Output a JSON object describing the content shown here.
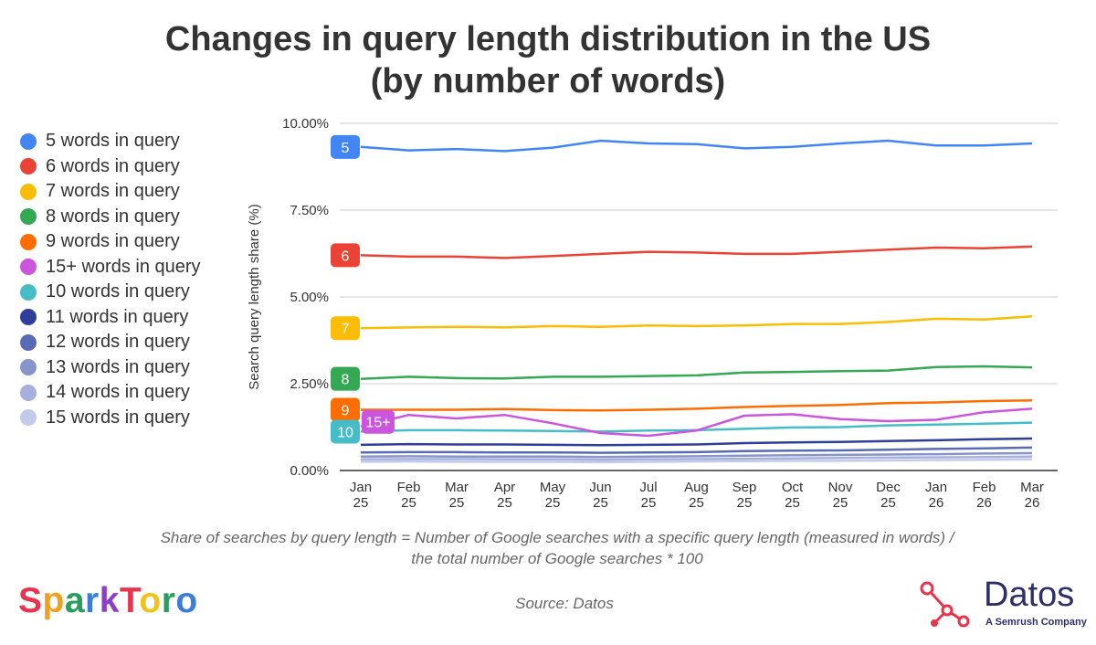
{
  "title_line1": "Changes in query length distribution in the US",
  "title_line2": "(by number of words)",
  "legend": [
    {
      "label": "5 words in query",
      "color": "#4285f4"
    },
    {
      "label": "6 words in query",
      "color": "#ea4335"
    },
    {
      "label": "7 words in query",
      "color": "#fbbc04"
    },
    {
      "label": "8 words in query",
      "color": "#34a853"
    },
    {
      "label": "9 words in query",
      "color": "#ff6d01"
    },
    {
      "label": "15+ words in query",
      "color": "#cc55dd"
    },
    {
      "label": "10 words in query",
      "color": "#46bdc6"
    },
    {
      "label": "11 words in query",
      "color": "#2f3e99"
    },
    {
      "label": "12 words in query",
      "color": "#5a6bb5"
    },
    {
      "label": "13 words in query",
      "color": "#8795cb"
    },
    {
      "label": "14 words in query",
      "color": "#a6b0dc"
    },
    {
      "label": "15 words in query",
      "color": "#c4cbea"
    }
  ],
  "footnote_line1": "Share of searches by query length = Number of Google searches with a specific query length (measured in words) /",
  "footnote_line2": "the total number of Google searches * 100",
  "source": "Source: Datos",
  "logos": {
    "sparktoro": "SparkToro",
    "datos": "Datos",
    "datos_tagline": "A Semrush Company"
  },
  "chart_data": {
    "type": "line",
    "ylabel": "Search query length share (%)",
    "xlabel": "",
    "ylim": [
      0,
      10
    ],
    "y_ticks": [
      "0.00%",
      "2.50%",
      "5.00%",
      "7.50%",
      "10.00%"
    ],
    "y_tick_values": [
      0,
      2.5,
      5,
      7.5,
      10
    ],
    "categories": [
      "Jan 25",
      "Feb 25",
      "Mar 25",
      "Apr 25",
      "May 25",
      "Jun 25",
      "Jul 25",
      "Aug 25",
      "Sep 25",
      "Oct 25",
      "Nov 25",
      "Dec 25",
      "Jan 26",
      "Feb 26",
      "Mar 26"
    ],
    "grid": true,
    "legend_position": "left",
    "series": [
      {
        "name": "5 words in query",
        "badge": "5",
        "color": "#4285f4",
        "values": [
          9.32,
          9.22,
          9.26,
          9.2,
          9.3,
          9.5,
          9.42,
          9.4,
          9.28,
          9.32,
          9.42,
          9.5,
          9.36,
          9.36,
          9.42
        ]
      },
      {
        "name": "6 words in query",
        "badge": "6",
        "color": "#ea4335",
        "values": [
          6.2,
          6.16,
          6.16,
          6.12,
          6.18,
          6.24,
          6.3,
          6.28,
          6.24,
          6.24,
          6.3,
          6.36,
          6.42,
          6.4,
          6.45
        ]
      },
      {
        "name": "7 words in query",
        "badge": "7",
        "color": "#fbbc04",
        "values": [
          4.1,
          4.12,
          4.14,
          4.12,
          4.16,
          4.14,
          4.18,
          4.16,
          4.18,
          4.22,
          4.22,
          4.28,
          4.37,
          4.35,
          4.44
        ]
      },
      {
        "name": "8 words in query",
        "badge": "8",
        "color": "#34a853",
        "values": [
          2.64,
          2.7,
          2.66,
          2.65,
          2.7,
          2.7,
          2.72,
          2.74,
          2.82,
          2.84,
          2.86,
          2.88,
          2.98,
          3.0,
          2.97
        ]
      },
      {
        "name": "9 words in query",
        "badge": "9",
        "color": "#ff6d01",
        "values": [
          1.75,
          1.75,
          1.75,
          1.77,
          1.74,
          1.73,
          1.75,
          1.78,
          1.83,
          1.86,
          1.89,
          1.94,
          1.96,
          2.0,
          2.02
        ]
      },
      {
        "name": "15+ words in query",
        "badge": "15+",
        "color": "#cc55dd",
        "values": [
          1.27,
          1.6,
          1.5,
          1.6,
          1.36,
          1.08,
          1.0,
          1.15,
          1.58,
          1.62,
          1.48,
          1.42,
          1.46,
          1.68,
          1.78
        ]
      },
      {
        "name": "10 words in query",
        "badge": "10",
        "color": "#46bdc6",
        "values": [
          1.12,
          1.16,
          1.16,
          1.15,
          1.14,
          1.12,
          1.15,
          1.16,
          1.2,
          1.24,
          1.25,
          1.3,
          1.32,
          1.35,
          1.38
        ]
      },
      {
        "name": "11 words in query",
        "badge": "",
        "color": "#2f3e99",
        "values": [
          0.74,
          0.76,
          0.75,
          0.75,
          0.74,
          0.73,
          0.74,
          0.75,
          0.79,
          0.81,
          0.82,
          0.85,
          0.87,
          0.9,
          0.92
        ]
      },
      {
        "name": "12 words in query",
        "badge": "",
        "color": "#5a6bb5",
        "values": [
          0.52,
          0.53,
          0.53,
          0.52,
          0.52,
          0.51,
          0.52,
          0.53,
          0.56,
          0.57,
          0.58,
          0.6,
          0.62,
          0.64,
          0.66
        ]
      },
      {
        "name": "13 words in query",
        "badge": "",
        "color": "#8795cb",
        "values": [
          0.4,
          0.41,
          0.4,
          0.4,
          0.4,
          0.39,
          0.4,
          0.41,
          0.43,
          0.44,
          0.45,
          0.46,
          0.47,
          0.49,
          0.5
        ]
      },
      {
        "name": "14 words in query",
        "badge": "",
        "color": "#a6b0dc",
        "values": [
          0.32,
          0.33,
          0.33,
          0.32,
          0.32,
          0.31,
          0.32,
          0.33,
          0.34,
          0.35,
          0.36,
          0.37,
          0.38,
          0.39,
          0.4
        ]
      },
      {
        "name": "15 words in query",
        "badge": "",
        "color": "#c4cbea",
        "values": [
          0.25,
          0.26,
          0.25,
          0.25,
          0.25,
          0.24,
          0.25,
          0.26,
          0.27,
          0.28,
          0.28,
          0.29,
          0.3,
          0.31,
          0.32
        ]
      }
    ]
  }
}
